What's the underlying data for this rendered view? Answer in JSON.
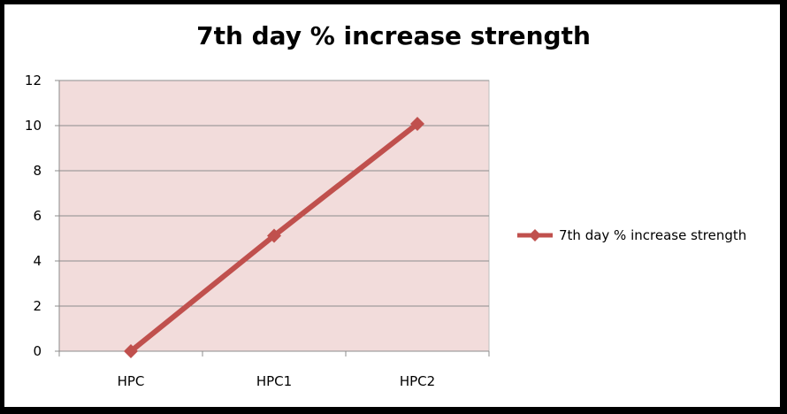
{
  "chart_data": {
    "type": "line",
    "title": "7th day % increase strength",
    "categories": [
      "HPC",
      "HPC1",
      "HPC2"
    ],
    "series": [
      {
        "name": "7th day % increase strength",
        "values": [
          0,
          5.12,
          10.08
        ],
        "color": "#C0504D"
      }
    ],
    "ylim": [
      0,
      12
    ],
    "yticks": [
      0,
      2,
      4,
      6,
      8,
      10,
      12
    ],
    "grid": true,
    "plot_background": "#F2DCDB",
    "legend_position": "right",
    "xlabel": "",
    "ylabel": ""
  }
}
